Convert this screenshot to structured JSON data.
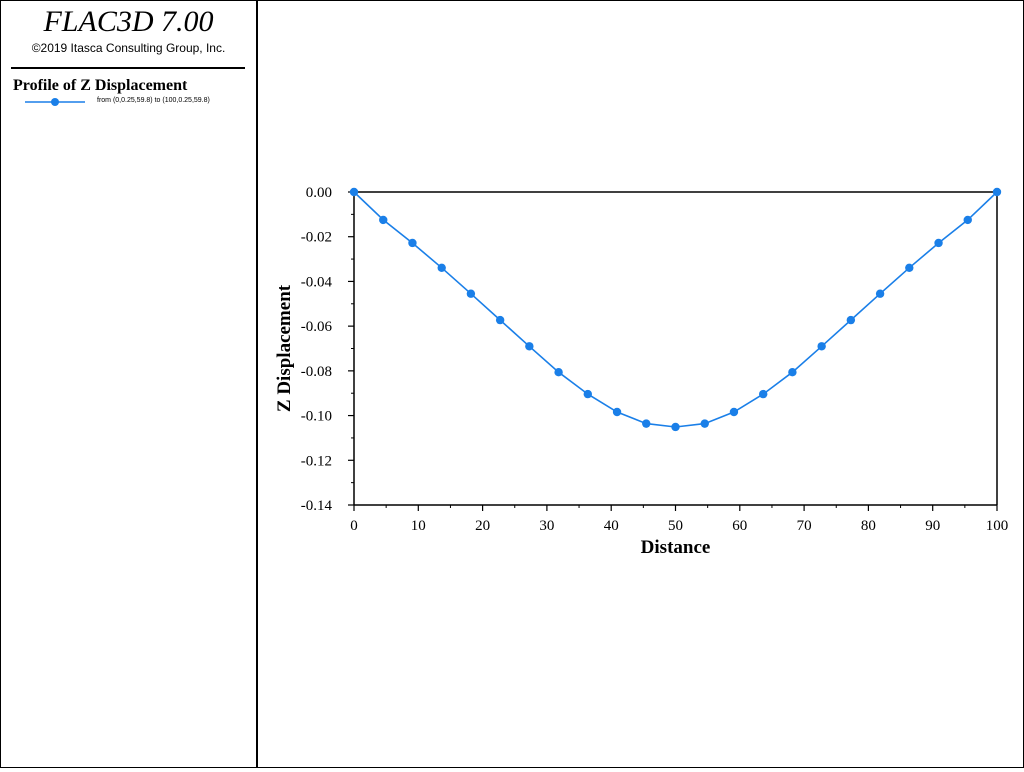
{
  "app": {
    "title": "FLAC3D 7.00",
    "copyright": "©2019 Itasca Consulting Group, Inc."
  },
  "legend": {
    "title": "Profile of Z Displacement",
    "entries": [
      {
        "label": "from (0,0.25,59.8) to (100,0.25,59.8)",
        "color": "#1a7fe8",
        "marker": "circle"
      }
    ]
  },
  "chart_data": {
    "type": "line",
    "title": "",
    "xlabel": "Distance",
    "ylabel": "Z Displacement",
    "xlim": [
      0,
      100
    ],
    "ylim": [
      -0.14,
      0.0
    ],
    "xticks": [
      0,
      10,
      20,
      30,
      40,
      50,
      60,
      70,
      80,
      90,
      100
    ],
    "yticks": [
      "0.00",
      "-0.02",
      "-0.04",
      "-0.06",
      "-0.08",
      "-0.10",
      "-0.12",
      "-0.14"
    ],
    "grid": false,
    "series": [
      {
        "name": "from (0,0.25,59.8) to (100,0.25,59.8)",
        "color": "#1a7fe8",
        "x": [
          0,
          4.55,
          9.09,
          13.64,
          18.18,
          22.73,
          27.27,
          31.82,
          36.36,
          40.91,
          45.45,
          50.0,
          54.55,
          59.09,
          63.64,
          68.18,
          72.73,
          77.27,
          81.82,
          86.36,
          90.91,
          95.45,
          100
        ],
        "y": [
          0.0,
          -0.0125,
          -0.0228,
          -0.0339,
          -0.0455,
          -0.0573,
          -0.069,
          -0.0806,
          -0.0904,
          -0.0984,
          -0.1036,
          -0.1051,
          -0.1036,
          -0.0984,
          -0.0904,
          -0.0806,
          -0.069,
          -0.0573,
          -0.0455,
          -0.0339,
          -0.0228,
          -0.0125,
          0.0
        ]
      }
    ]
  }
}
